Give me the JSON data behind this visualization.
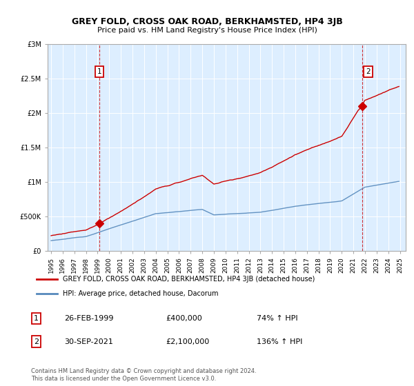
{
  "title": "GREY FOLD, CROSS OAK ROAD, BERKHAMSTED, HP4 3JB",
  "subtitle": "Price paid vs. HM Land Registry's House Price Index (HPI)",
  "legend_line1": "GREY FOLD, CROSS OAK ROAD, BERKHAMSTED, HP4 3JB (detached house)",
  "legend_line2": "HPI: Average price, detached house, Dacorum",
  "footer": "Contains HM Land Registry data © Crown copyright and database right 2024.\nThis data is licensed under the Open Government Licence v3.0.",
  "red_color": "#cc0000",
  "blue_color": "#5588bb",
  "bg_color": "#ddeeff",
  "ylim": [
    0,
    3000000
  ],
  "yticks": [
    0,
    500000,
    1000000,
    1500000,
    2000000,
    2500000,
    3000000
  ],
  "xlim_start": 1994.7,
  "xlim_end": 2025.5,
  "sale1_x": 1999.15,
  "sale1_y": 400000,
  "sale2_x": 2021.75,
  "sale2_y": 2100000,
  "table_data": [
    [
      "1",
      "26-FEB-1999",
      "£400,000",
      "74% ↑ HPI"
    ],
    [
      "2",
      "30-SEP-2021",
      "£2,100,000",
      "136% ↑ HPI"
    ]
  ]
}
